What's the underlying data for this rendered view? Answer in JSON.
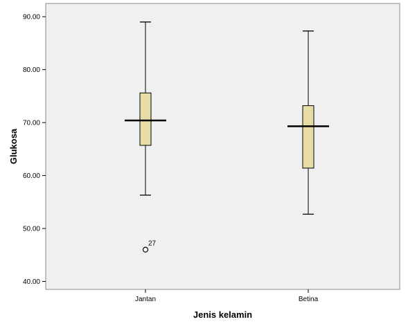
{
  "chart_data": {
    "type": "boxplot",
    "xlabel": "Jenis kelamin",
    "ylabel": "Glukosa",
    "ylim": [
      38.5,
      92.5
    ],
    "yticks": [
      "40.00",
      "50.00",
      "60.00",
      "70.00",
      "80.00",
      "90.00"
    ],
    "ytick_values": [
      40,
      50,
      60,
      70,
      80,
      90
    ],
    "grid": false,
    "categories": [
      "Jantan",
      "Betina"
    ],
    "boxes": [
      {
        "min": 56.3,
        "q1": 65.7,
        "median": 70.4,
        "q3": 75.6,
        "max": 89.0,
        "outliers": [
          {
            "value": 46.0,
            "label": "27"
          }
        ]
      },
      {
        "min": 52.7,
        "q1": 61.4,
        "median": 69.3,
        "q3": 73.2,
        "max": 87.3,
        "outliers": []
      }
    ],
    "colors": {
      "plot_background": "#f0f0f0",
      "box_fill": "#e8dca6",
      "stroke": "#000000"
    }
  }
}
